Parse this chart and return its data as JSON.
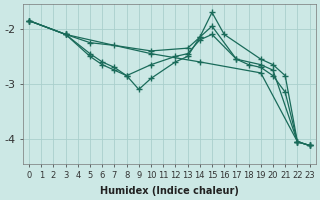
{
  "bg_color": "#cce8e5",
  "grid_color": "#aacfcc",
  "line_color": "#1a6b5a",
  "xlabel": "Humidex (Indice chaleur)",
  "xlim": [
    -0.5,
    23.5
  ],
  "ylim": [
    -4.45,
    -1.55
  ],
  "yticks": [
    -4,
    -3,
    -2
  ],
  "ytick_labels": [
    "-4",
    "-3",
    "-2"
  ],
  "xticks": [
    0,
    1,
    2,
    3,
    4,
    5,
    6,
    7,
    8,
    9,
    10,
    11,
    12,
    13,
    14,
    15,
    16,
    17,
    18,
    19,
    20,
    21,
    22,
    23
  ],
  "lines": [
    {
      "x": [
        0,
        3,
        10,
        14,
        19,
        22,
        23
      ],
      "y": [
        -1.85,
        -2.1,
        -2.45,
        -2.6,
        -2.8,
        -4.05,
        -4.12
      ]
    },
    {
      "x": [
        0,
        3,
        5,
        7,
        10,
        13,
        14,
        15,
        16,
        19,
        20,
        21,
        22,
        23
      ],
      "y": [
        -1.85,
        -2.1,
        -2.25,
        -2.3,
        -2.4,
        -2.35,
        -2.15,
        -1.7,
        -2.1,
        -2.55,
        -2.65,
        -2.85,
        -4.05,
        -4.12
      ]
    },
    {
      "x": [
        0,
        3,
        5,
        6,
        7,
        8,
        10,
        12,
        13,
        14,
        15,
        17,
        19,
        20,
        22,
        23
      ],
      "y": [
        -1.85,
        -2.1,
        -2.45,
        -2.6,
        -2.7,
        -2.85,
        -2.65,
        -2.5,
        -2.45,
        -2.2,
        -2.1,
        -2.55,
        -2.65,
        -2.75,
        -4.05,
        -4.12
      ]
    },
    {
      "x": [
        0,
        3,
        5,
        6,
        7,
        8,
        9,
        10,
        12,
        13,
        14,
        15,
        17,
        18,
        19,
        20,
        21,
        22,
        23
      ],
      "y": [
        -1.85,
        -2.1,
        -2.5,
        -2.65,
        -2.75,
        -2.85,
        -3.1,
        -2.9,
        -2.6,
        -2.5,
        -2.15,
        -1.95,
        -2.55,
        -2.65,
        -2.7,
        -2.85,
        -3.15,
        -4.05,
        -4.12
      ]
    }
  ]
}
